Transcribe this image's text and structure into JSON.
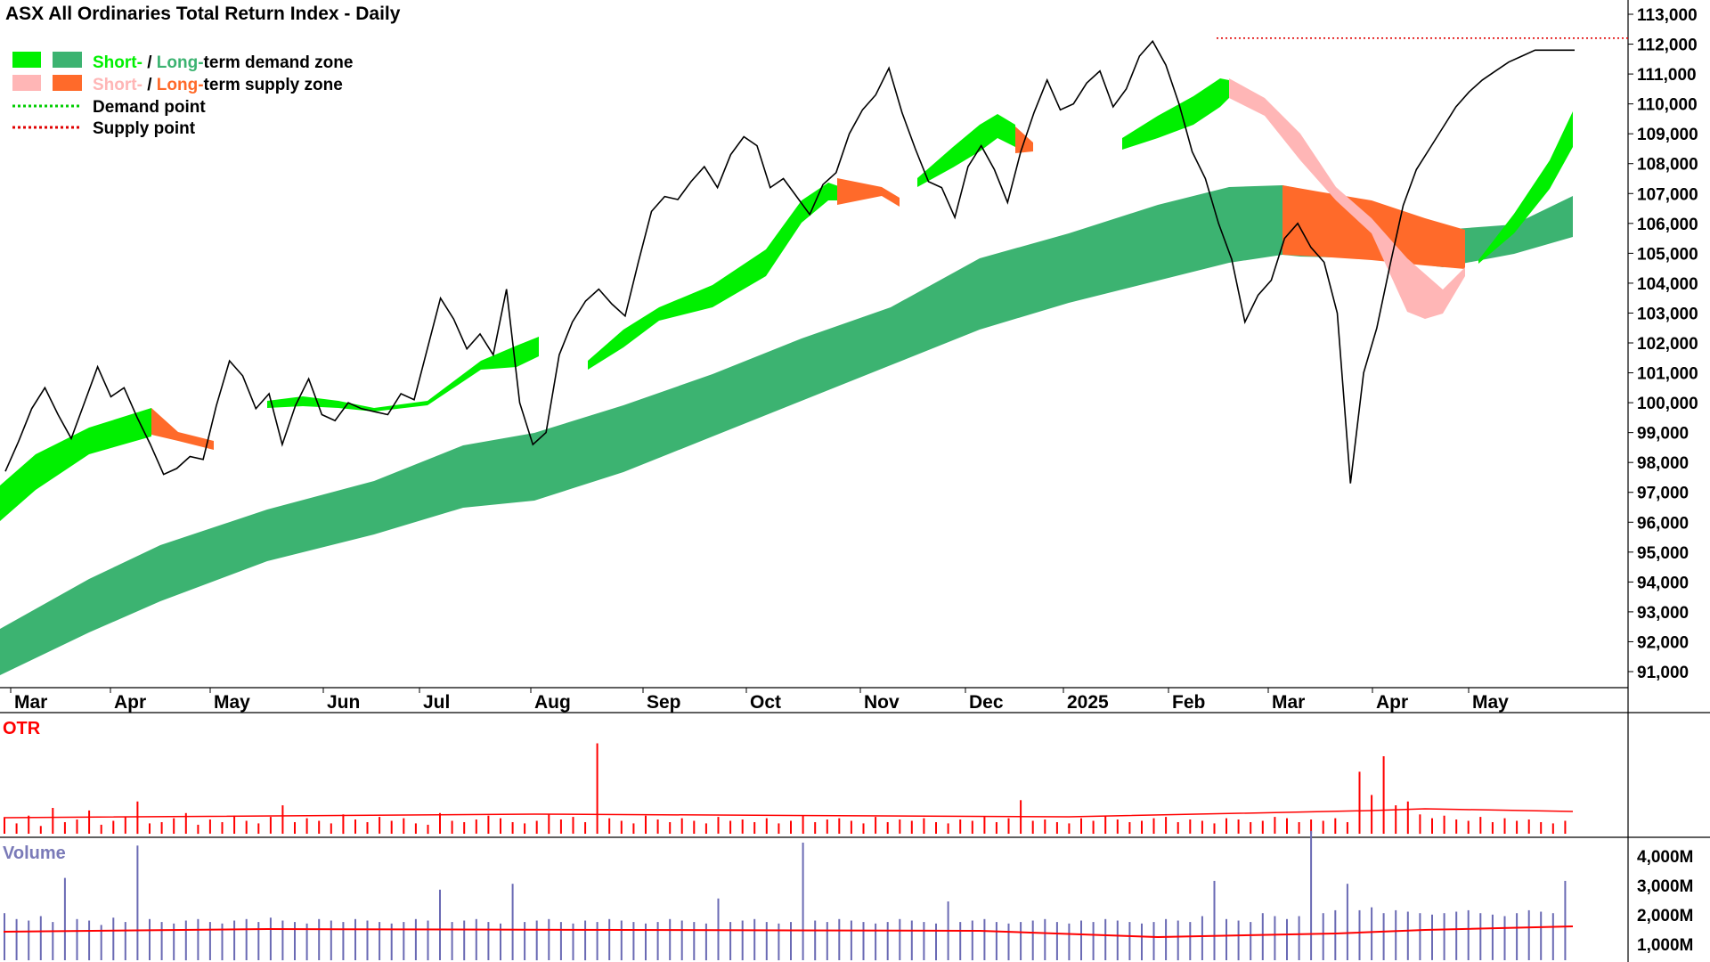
{
  "title": "ASX All Ordinaries Total Return Index - Daily",
  "legend": {
    "demand_zone": {
      "short": "Short-",
      "sep": " / ",
      "long": "Long-",
      "rest": "term demand zone"
    },
    "supply_zone": {
      "short": "Short-",
      "sep": " / ",
      "long": "Long-",
      "rest": "term supply zone"
    },
    "demand_point": "Demand point",
    "supply_point": "Supply point"
  },
  "colors": {
    "short_demand": "#00f000",
    "long_demand": "#3cb371",
    "short_supply": "#ffb6b6",
    "long_supply": "#ff6a2a",
    "price": "#000000",
    "demand_point": "#00cc00",
    "supply_point": "#e00000",
    "otr": "#ff0000",
    "volume_bar": "#6a6ab4",
    "volume_avg": "#ff0000",
    "volume_label": "#7a7ab8"
  },
  "panels": {
    "otr_label": "OTR",
    "volume_label": "Volume"
  },
  "chart_data": {
    "type": "line",
    "title": "ASX All Ordinaries Total Return Index - Daily",
    "x_months": [
      "Mar",
      "Apr",
      "May",
      "Jun",
      "Jul",
      "Aug",
      "Sep",
      "Oct",
      "Nov",
      "Dec",
      "2025",
      "Feb",
      "Mar",
      "Apr",
      "May"
    ],
    "y_ticks": [
      "113,000",
      "112,000",
      "111,000",
      "110,000",
      "109,000",
      "108,000",
      "107,000",
      "106,000",
      "105,000",
      "104,000",
      "103,000",
      "102,000",
      "101,000",
      "100,000",
      "99,000",
      "98,000",
      "97,000",
      "96,000",
      "95,000",
      "94,000",
      "93,000",
      "92,000",
      "91,000"
    ],
    "ylim": [
      90500,
      113500
    ],
    "price_series": {
      "t": [
        0,
        2,
        4,
        6,
        8,
        10,
        12,
        14,
        16,
        18,
        20,
        22,
        24,
        26,
        28,
        30,
        32,
        34,
        36,
        38,
        40,
        42,
        44,
        46,
        48,
        50,
        52,
        54,
        56,
        58,
        60,
        62,
        64,
        66,
        68,
        70,
        72,
        74,
        76,
        78,
        80,
        82,
        84,
        86,
        88,
        90,
        92,
        94,
        96,
        98,
        100,
        102,
        104,
        106,
        108,
        110,
        112,
        114,
        116,
        118,
        120,
        122,
        124,
        126,
        128,
        130,
        132,
        134,
        136,
        138,
        140,
        142,
        144,
        146,
        148,
        150,
        152,
        154,
        156,
        158,
        160,
        162,
        164,
        166,
        168,
        170,
        172,
        174,
        176,
        178,
        180,
        182,
        184,
        186,
        188,
        190,
        192,
        194,
        196,
        198,
        200,
        202,
        204,
        206,
        208,
        210,
        212,
        214,
        216,
        218,
        220,
        222,
        224,
        226,
        228,
        230,
        232,
        234,
        236,
        238,
        240,
        242,
        244,
        246,
        248,
        250,
        252,
        254,
        256,
        258,
        260,
        262,
        264,
        266,
        268,
        270,
        272,
        274,
        276,
        278,
        280,
        282,
        284,
        286,
        288,
        290,
        292,
        294,
        296,
        298,
        300,
        302,
        304,
        306,
        308,
        310
      ],
      "y": [
        97700,
        98700,
        99800,
        100500,
        99600,
        98800,
        100000,
        101200,
        100200,
        100500,
        99500,
        98600,
        97600,
        97800,
        98200,
        98100,
        99900,
        101400,
        100900,
        99800,
        100300,
        98600,
        99900,
        100800,
        99600,
        99400,
        100000,
        99800,
        99700,
        99600,
        100300,
        100100,
        101800,
        103500,
        102800,
        101800,
        102300,
        101600,
        103800,
        100000,
        98600,
        99000,
        101600,
        102700,
        103400,
        103800,
        103300,
        102900,
        104700,
        106400,
        106900,
        106800,
        107400,
        107900,
        107200,
        108300,
        108900,
        108600,
        107200,
        107500,
        106900,
        106300,
        107300,
        107700,
        109000,
        109800,
        110300,
        111200,
        109700,
        108500,
        107400,
        107200,
        106200,
        107900,
        108600,
        107800,
        106700,
        108400,
        109700,
        110800,
        109800,
        110000,
        110700,
        111100,
        109900,
        110500,
        111600,
        112100,
        111300,
        110000,
        108400,
        107500,
        106000,
        104800,
        102700,
        103600,
        104100,
        105500,
        106000,
        105200,
        104700,
        103000,
        97300,
        101000,
        102500,
        104600,
        106600,
        107800,
        108500,
        109200,
        109900,
        110400,
        110800,
        111100,
        111400,
        111600,
        111800,
        111800,
        111800,
        111800,
        111800,
        111800,
        111800,
        111800,
        111800,
        111800,
        111800,
        111800,
        111800,
        111800,
        111800,
        111800,
        111800,
        111800,
        111800,
        111800,
        111800,
        111800,
        111800,
        111800,
        111800,
        111800,
        111800,
        111800,
        111800,
        111800,
        111800,
        111800,
        111800,
        111800,
        111800,
        111800,
        111800,
        111800,
        111800,
        111800
      ]
    },
    "supply_point_level": 112200,
    "otr_bars": [
      12,
      8,
      14,
      6,
      20,
      9,
      11,
      18,
      7,
      10,
      13,
      25,
      8,
      9,
      12,
      16,
      7,
      11,
      9,
      14,
      10,
      8,
      13,
      22,
      9,
      12,
      10,
      8,
      15,
      11,
      9,
      13,
      10,
      12,
      8,
      7,
      16,
      10,
      9,
      11,
      14,
      12,
      9,
      8,
      10,
      15,
      11,
      13,
      9,
      70,
      12,
      10,
      8,
      14,
      11,
      9,
      12,
      10,
      8,
      13,
      10,
      11,
      9,
      12,
      8,
      10,
      14,
      9,
      11,
      12,
      10,
      8,
      13,
      9,
      11,
      10,
      12,
      9,
      8,
      11,
      10,
      13,
      9,
      12,
      26,
      10,
      11,
      9,
      8,
      12,
      10,
      14,
      11,
      9,
      10,
      12,
      13,
      9,
      11,
      10,
      8,
      12,
      11,
      9,
      10,
      13,
      12,
      9,
      11,
      10,
      12,
      9,
      48,
      30,
      60,
      22,
      25,
      15,
      12,
      14,
      11,
      10,
      13,
      9,
      12,
      10,
      11,
      9,
      8,
      10
    ],
    "volume_bars_m": [
      1600,
      1400,
      1350,
      1500,
      1300,
      2800,
      1400,
      1350,
      1200,
      1450,
      1300,
      3900,
      1400,
      1300,
      1250,
      1350,
      1400,
      1300,
      1250,
      1350,
      1400,
      1300,
      1450,
      1350,
      1300,
      1250,
      1400,
      1350,
      1300,
      1400,
      1350,
      1300,
      1250,
      1300,
      1400,
      1350,
      2400,
      1300,
      1350,
      1400,
      1300,
      1250,
      2600,
      1300,
      1350,
      1400,
      1300,
      1250,
      1350,
      1300,
      1400,
      1350,
      1300,
      1250,
      1300,
      1400,
      1350,
      1300,
      1250,
      2100,
      1300,
      1350,
      1400,
      1300,
      1250,
      1300,
      4000,
      1350,
      1300,
      1400,
      1350,
      1300,
      1250,
      1300,
      1400,
      1350,
      1300,
      1250,
      2000,
      1300,
      1350,
      1400,
      1300,
      1250,
      1300,
      1350,
      1400,
      1300,
      1250,
      1350,
      1300,
      1400,
      1350,
      1300,
      1250,
      1300,
      1400,
      1350,
      1300,
      1500,
      2700,
      1400,
      1350,
      1300,
      1600,
      1500,
      1400,
      1500,
      4400,
      1600,
      1700,
      2600,
      1700,
      1800,
      1600,
      1700,
      1650,
      1600,
      1550,
      1600,
      1650,
      1700,
      1600,
      1550,
      1500,
      1600,
      1700,
      1650,
      1600,
      2700
    ]
  }
}
